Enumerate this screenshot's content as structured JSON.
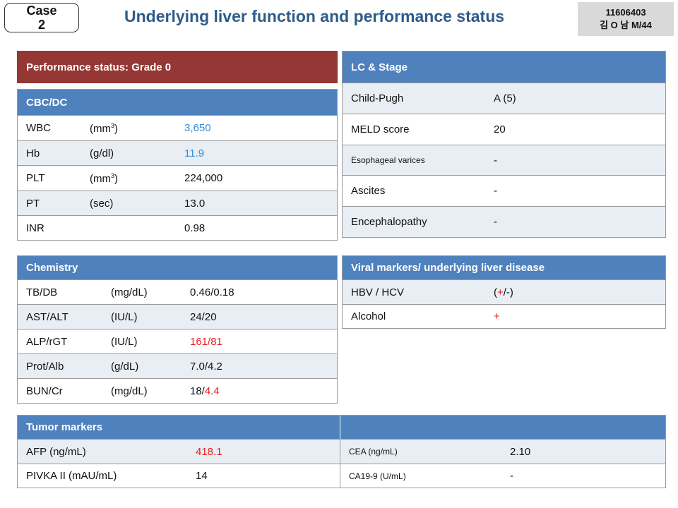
{
  "header": {
    "case_label": "Case\n2",
    "title": "Underlying liver function and performance status",
    "patient_id": "11606403",
    "patient_info": "김 O 남 M/44"
  },
  "performance": {
    "label": "Performance status: Grade 0"
  },
  "cbc": {
    "title": "CBC/DC",
    "rows": [
      {
        "name": "WBC",
        "unit": "(mm",
        "unit_sup": "3",
        "unit_end": ")",
        "value": "3,650"
      },
      {
        "name": "Hb",
        "unit": "(g/dl)",
        "unit_sup": "",
        "unit_end": "",
        "value": "11.9"
      },
      {
        "name": "PLT",
        "unit": "(mm",
        "unit_sup": "3",
        "unit_end": ")",
        "value": "224,000"
      },
      {
        "name": "PT",
        "unit": "(sec)",
        "unit_sup": "",
        "unit_end": "",
        "value": "13.0"
      },
      {
        "name": "INR",
        "unit": "",
        "unit_sup": "",
        "unit_end": "",
        "value": "0.98"
      }
    ]
  },
  "lc_stage": {
    "title": "LC & Stage",
    "rows": [
      {
        "name": "Child-Pugh",
        "value": "A (5)"
      },
      {
        "name": "MELD score",
        "value": "20"
      },
      {
        "name": "Esophageal varices",
        "value": "-"
      },
      {
        "name": "Ascites",
        "value": "-"
      },
      {
        "name": "Encephalopathy",
        "value": "-"
      }
    ]
  },
  "chemistry": {
    "title": "Chemistry",
    "rows": [
      {
        "name": "TB/DB",
        "unit": "(mg/dL)",
        "value": "0.46/0.18",
        "value_a": "",
        "value_b": ""
      },
      {
        "name": "AST/ALT",
        "unit": "(IU/L)",
        "value": "24/20",
        "value_a": "",
        "value_b": ""
      },
      {
        "name": "ALP/rGT",
        "unit": "(IU/L)",
        "value": "161/81",
        "value_a": "",
        "value_b": ""
      },
      {
        "name": "Prot/Alb",
        "unit": "(g/dL)",
        "value": "7.0/4.2",
        "value_a": "",
        "value_b": ""
      },
      {
        "name": "BUN/Cr",
        "unit": "(mg/dL)",
        "value": "",
        "value_a": "18/",
        "value_b": "4.4"
      }
    ]
  },
  "viral": {
    "title": "Viral markers/ underlying liver disease",
    "rows": [
      {
        "name": "HBV / HCV",
        "value_open": "(",
        "value_plus": "+",
        "value_close": "/-)"
      },
      {
        "name": "Alcohol",
        "value": "+"
      }
    ]
  },
  "tumor": {
    "title": "Tumor markers",
    "rows": [
      {
        "name": "AFP (ng/mL)",
        "value": "418.1",
        "name2": "CEA (ng/mL)",
        "value2": "2.10"
      },
      {
        "name": "PIVKA II (mAU/mL)",
        "value": "14",
        "name2": "CA19-9 (U/mL)",
        "value2": "-"
      }
    ]
  },
  "colors": {
    "header_blue": "#4f81bd",
    "header_red": "#953735",
    "title_blue": "#2e5c8a",
    "abnormal_low": "#2e8fd8",
    "abnormal_high": "#e52020"
  }
}
